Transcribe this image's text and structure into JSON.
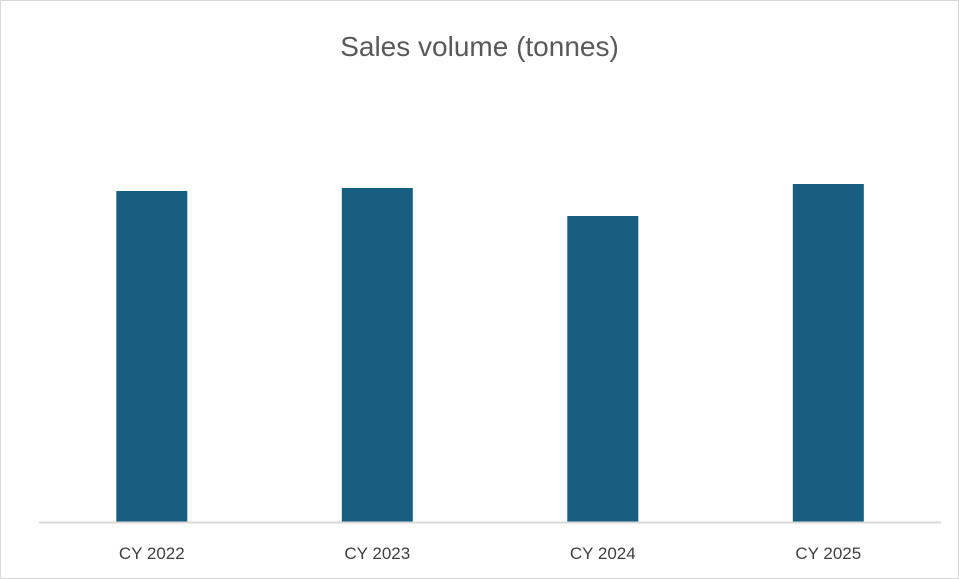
{
  "chart_data": {
    "type": "bar",
    "title": "Sales volume (tonnes)",
    "categories": [
      "CY 2022",
      "CY 2023",
      "CY 2024",
      "CY 2025"
    ],
    "values": [
      331,
      334,
      306,
      338
    ],
    "ylim": [
      0,
      450
    ],
    "xlabel": "",
    "ylabel": "",
    "grid": false,
    "legend": "none",
    "colors": {
      "bar": "#175e80",
      "axis": "#d9d9d9"
    }
  }
}
